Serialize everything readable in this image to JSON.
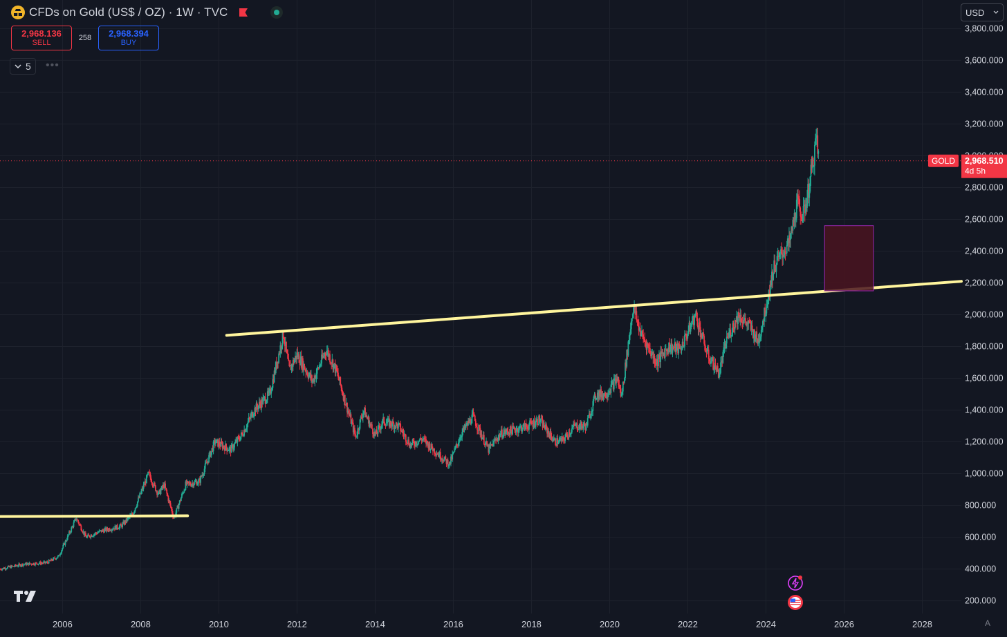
{
  "header": {
    "title": "CFDs on Gold (US$ / OZ) · 1W · TVC",
    "sell_price": "2,968.136",
    "sell_label": "SELL",
    "spread": "258",
    "buy_price": "2,968.394",
    "buy_label": "BUY",
    "collapse_count": "5",
    "more": "•••"
  },
  "currency": "USD",
  "auto_label": "A",
  "price_badge": {
    "symbol": "GOLD",
    "price": "2,968.510",
    "countdown": "4d 5h"
  },
  "colors": {
    "background": "#131722",
    "up": "#22ab94",
    "down": "#f23645",
    "trendline": "#fff59d",
    "zone_fill": "#4a1420",
    "zone_border": "#9c27b0"
  },
  "chart_data": {
    "type": "candlestick",
    "interval": "1W",
    "symbol": "GOLD",
    "ylim": [
      120,
      3980
    ],
    "xlim": [
      2004.4,
      2029.0
    ],
    "y_ticks": [
      "200.000",
      "400.000",
      "600.000",
      "800.000",
      "1,000.000",
      "1,200.000",
      "1,400.000",
      "1,600.000",
      "1,800.000",
      "2,000.000",
      "2,200.000",
      "2,400.000",
      "2,600.000",
      "2,800.000",
      "3,000.000",
      "3,200.000",
      "3,400.000",
      "3,600.000",
      "3,800.000"
    ],
    "y_tick_values": [
      200,
      400,
      600,
      800,
      1000,
      1200,
      1400,
      1600,
      1800,
      2000,
      2200,
      2400,
      2600,
      2800,
      3000,
      3200,
      3400,
      3600,
      3800
    ],
    "x_ticks": [
      "2006",
      "2008",
      "2010",
      "2012",
      "2014",
      "2016",
      "2018",
      "2020",
      "2022",
      "2024",
      "2026",
      "2028"
    ],
    "x_tick_values": [
      2006,
      2008,
      2010,
      2012,
      2014,
      2016,
      2018,
      2020,
      2022,
      2024,
      2026,
      2028
    ],
    "last_price": 2968.51,
    "price_path": [
      [
        2004.4,
        400
      ],
      [
        2005.0,
        430
      ],
      [
        2005.6,
        440
      ],
      [
        2005.9,
        480
      ],
      [
        2006.35,
        720
      ],
      [
        2006.6,
        600
      ],
      [
        2007.0,
        640
      ],
      [
        2007.5,
        670
      ],
      [
        2007.8,
        750
      ],
      [
        2008.2,
        1000
      ],
      [
        2008.45,
        870
      ],
      [
        2008.6,
        930
      ],
      [
        2008.85,
        720
      ],
      [
        2009.15,
        930
      ],
      [
        2009.5,
        950
      ],
      [
        2009.9,
        1200
      ],
      [
        2010.3,
        1150
      ],
      [
        2010.6,
        1250
      ],
      [
        2010.9,
        1400
      ],
      [
        2011.3,
        1500
      ],
      [
        2011.65,
        1880
      ],
      [
        2011.8,
        1650
      ],
      [
        2012.0,
        1750
      ],
      [
        2012.4,
        1580
      ],
      [
        2012.75,
        1780
      ],
      [
        2013.0,
        1650
      ],
      [
        2013.3,
        1400
      ],
      [
        2013.5,
        1230
      ],
      [
        2013.7,
        1400
      ],
      [
        2014.0,
        1240
      ],
      [
        2014.2,
        1330
      ],
      [
        2014.6,
        1300
      ],
      [
        2014.9,
        1180
      ],
      [
        2015.2,
        1220
      ],
      [
        2015.5,
        1150
      ],
      [
        2015.9,
        1060
      ],
      [
        2016.2,
        1250
      ],
      [
        2016.5,
        1360
      ],
      [
        2016.9,
        1150
      ],
      [
        2017.2,
        1250
      ],
      [
        2017.6,
        1280
      ],
      [
        2017.9,
        1300
      ],
      [
        2018.2,
        1340
      ],
      [
        2018.6,
        1200
      ],
      [
        2018.8,
        1210
      ],
      [
        2019.1,
        1300
      ],
      [
        2019.4,
        1300
      ],
      [
        2019.65,
        1500
      ],
      [
        2019.9,
        1500
      ],
      [
        2020.2,
        1600
      ],
      [
        2020.3,
        1480
      ],
      [
        2020.6,
        2050
      ],
      [
        2020.8,
        1880
      ],
      [
        2021.2,
        1700
      ],
      [
        2021.5,
        1800
      ],
      [
        2021.8,
        1780
      ],
      [
        2022.2,
        2000
      ],
      [
        2022.5,
        1750
      ],
      [
        2022.8,
        1630
      ],
      [
        2023.0,
        1850
      ],
      [
        2023.3,
        2000
      ],
      [
        2023.6,
        1920
      ],
      [
        2023.8,
        1830
      ],
      [
        2024.0,
        2050
      ],
      [
        2024.2,
        2300
      ],
      [
        2024.45,
        2400
      ],
      [
        2024.6,
        2450
      ],
      [
        2024.8,
        2700
      ],
      [
        2024.95,
        2620
      ],
      [
        2025.1,
        2800
      ],
      [
        2025.3,
        3120
      ],
      [
        2025.35,
        2968.51
      ]
    ],
    "annotations": {
      "support_line": [
        [
          2004.4,
          730
        ],
        [
          2009.2,
          735
        ]
      ],
      "resistance_line": [
        [
          2010.2,
          1870
        ],
        [
          2029.0,
          2210
        ]
      ],
      "zone": {
        "x": [
          2025.5,
          2026.75
        ],
        "y": [
          2150,
          2560
        ]
      }
    }
  }
}
